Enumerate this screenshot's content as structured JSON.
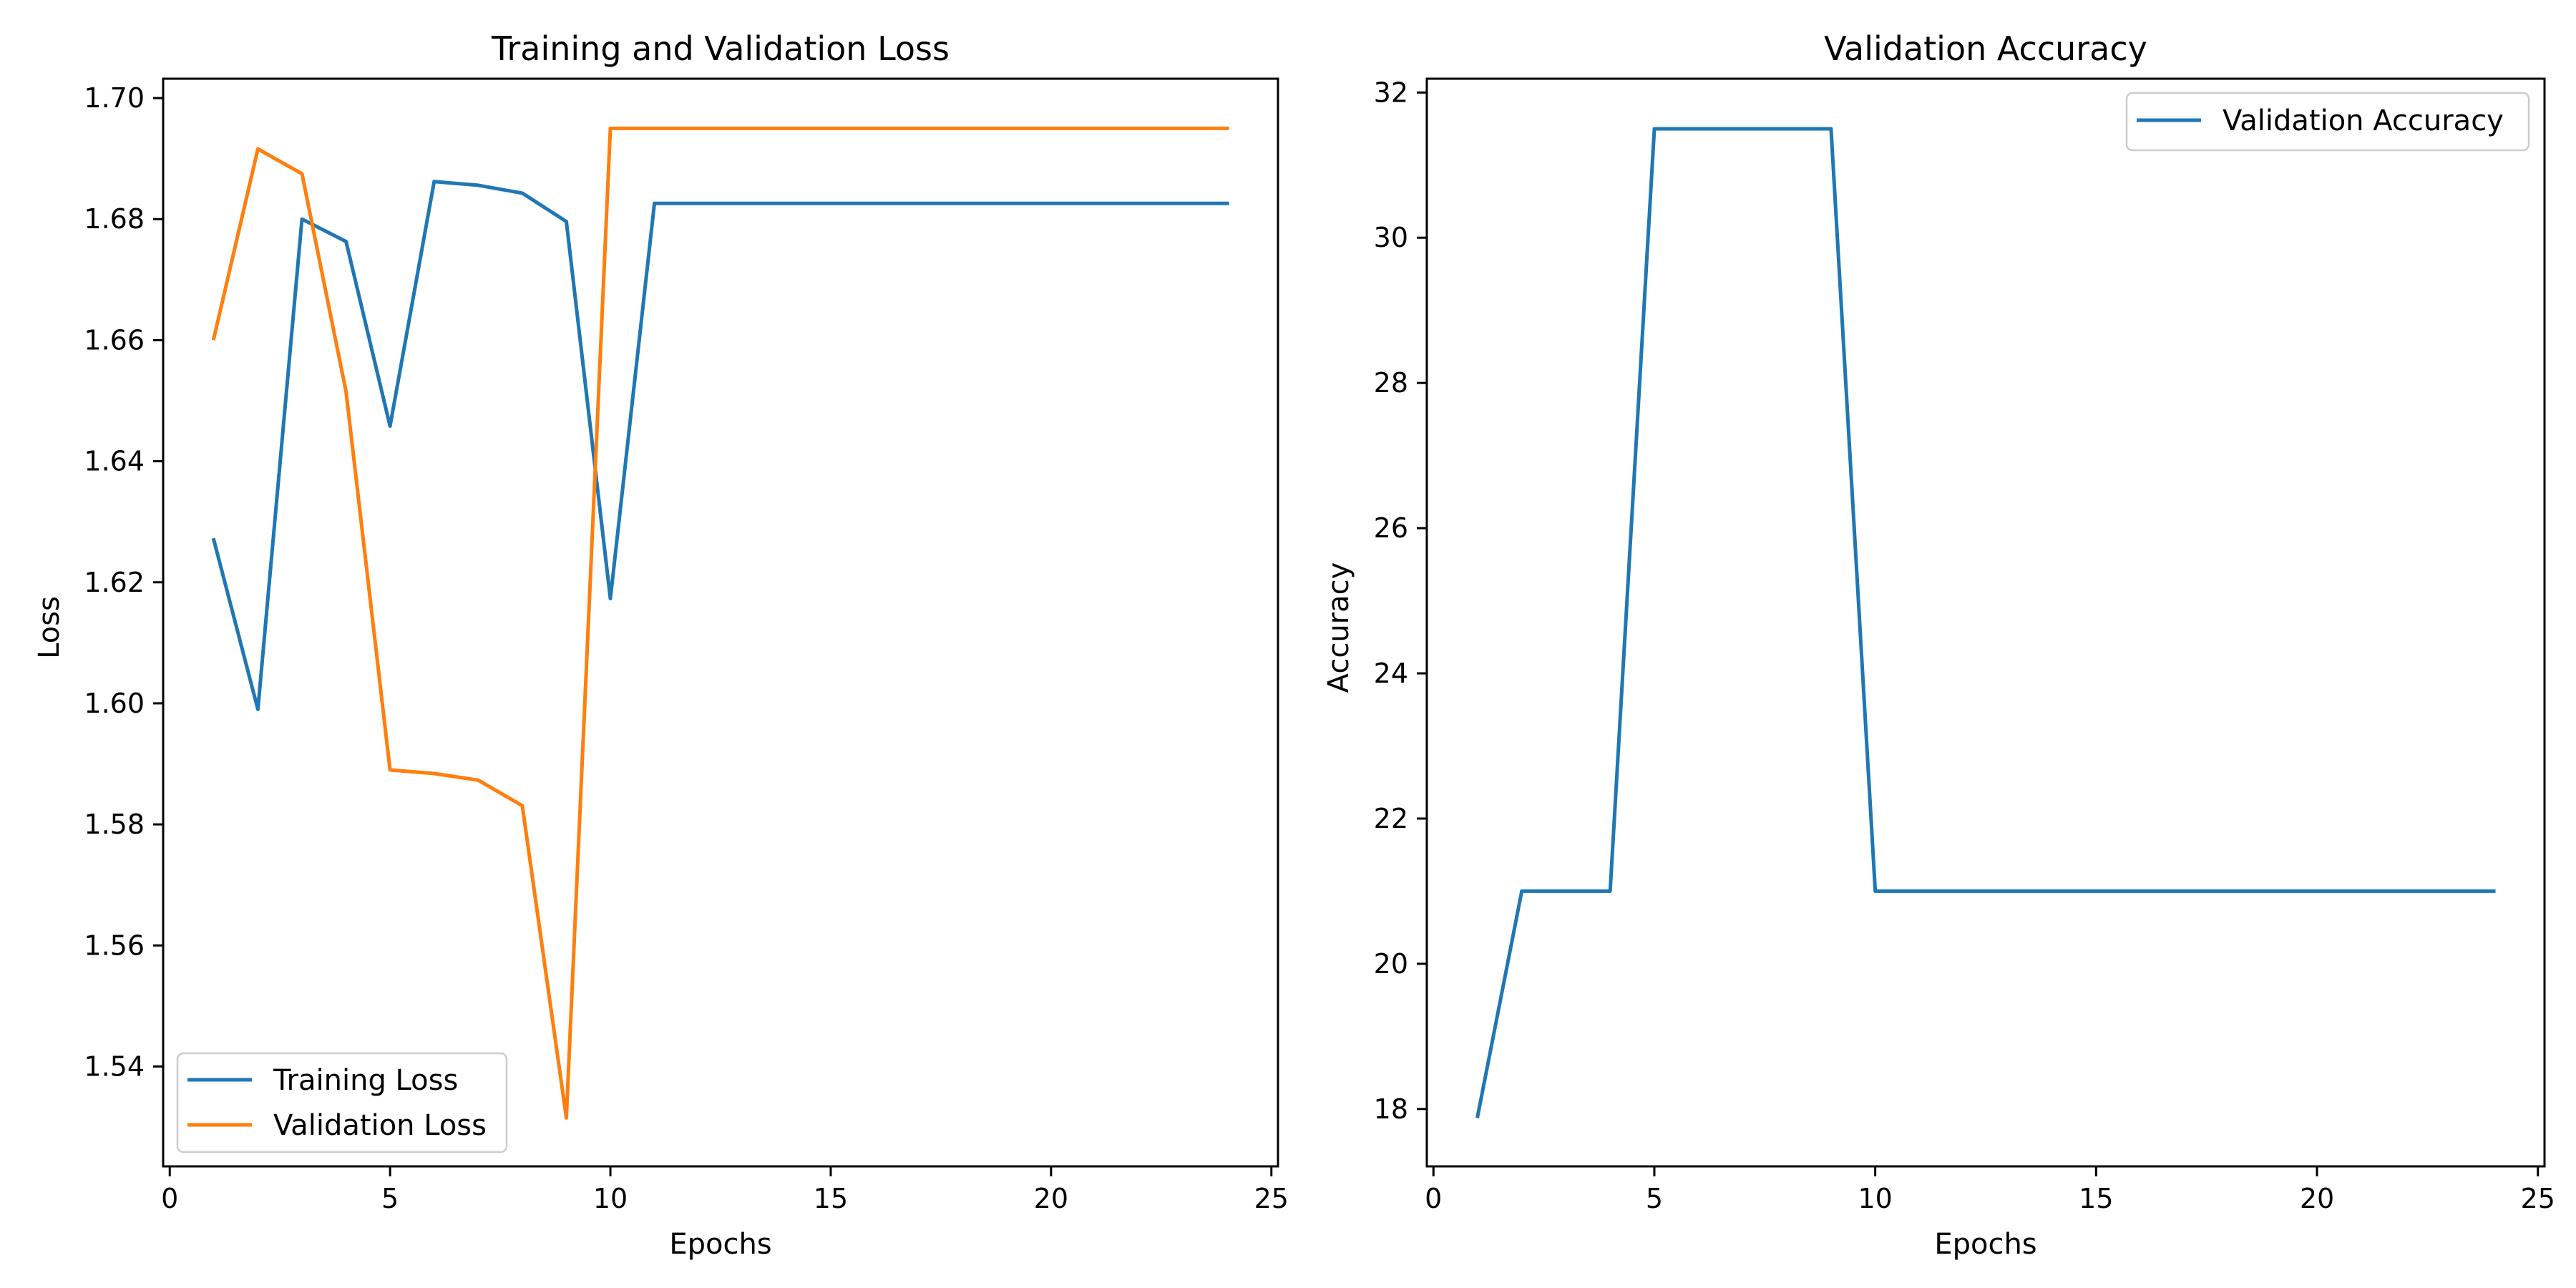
{
  "chart_data": [
    {
      "type": "line",
      "title": "Training and Validation Loss",
      "xlabel": "Epochs",
      "ylabel": "Loss",
      "xlim": [
        -0.15,
        25.15
      ],
      "ylim": [
        1.5235,
        1.7032
      ],
      "xticks": [
        0,
        5,
        10,
        15,
        20,
        25
      ],
      "xtick_labels": [
        "0",
        "5",
        "10",
        "15",
        "20",
        "25"
      ],
      "yticks": [
        1.54,
        1.56,
        1.58,
        1.6,
        1.62,
        1.64,
        1.66,
        1.68,
        1.7
      ],
      "ytick_labels": [
        "1.54",
        "1.56",
        "1.58",
        "1.60",
        "1.62",
        "1.64",
        "1.66",
        "1.68",
        "1.70"
      ],
      "grid": false,
      "legend_position": "lower-left",
      "x": [
        1,
        2,
        3,
        4,
        5,
        6,
        7,
        8,
        9,
        10,
        11,
        12,
        13,
        14,
        15,
        16,
        17,
        18,
        19,
        20,
        21,
        22,
        23,
        24
      ],
      "series": [
        {
          "name": "Training Loss",
          "color": "#1f77b4",
          "values": [
            1.627,
            1.599,
            1.68,
            1.6763,
            1.6458,
            1.6862,
            1.6856,
            1.6843,
            1.6796,
            1.6173,
            1.6826,
            1.6826,
            1.6826,
            1.6826,
            1.6826,
            1.6826,
            1.6826,
            1.6826,
            1.6826,
            1.6826,
            1.6826,
            1.6826,
            1.6826,
            1.6826
          ]
        },
        {
          "name": "Validation Loss",
          "color": "#ff7f0e",
          "values": [
            1.6603,
            1.6916,
            1.6875,
            1.6515,
            1.589,
            1.5884,
            1.5873,
            1.5831,
            1.5315,
            1.695,
            1.695,
            1.695,
            1.695,
            1.695,
            1.695,
            1.695,
            1.695,
            1.695,
            1.695,
            1.695,
            1.695,
            1.695,
            1.695,
            1.695
          ]
        }
      ]
    },
    {
      "type": "line",
      "title": "Validation Accuracy",
      "xlabel": "Epochs",
      "ylabel": "Accuracy",
      "xlim": [
        -0.15,
        25.15
      ],
      "ylim": [
        17.21,
        32.19
      ],
      "xticks": [
        0,
        5,
        10,
        15,
        20,
        25
      ],
      "xtick_labels": [
        "0",
        "5",
        "10",
        "15",
        "20",
        "25"
      ],
      "yticks": [
        18,
        20,
        22,
        24,
        26,
        28,
        30,
        32
      ],
      "ytick_labels": [
        "18",
        "20",
        "22",
        "24",
        "26",
        "28",
        "30",
        "32"
      ],
      "grid": false,
      "legend_position": "top-right",
      "x": [
        1,
        2,
        3,
        4,
        5,
        6,
        7,
        8,
        9,
        10,
        11,
        12,
        13,
        14,
        15,
        16,
        17,
        18,
        19,
        20,
        21,
        22,
        23,
        24
      ],
      "series": [
        {
          "name": "Validation Accuracy",
          "color": "#1f77b4",
          "values": [
            17.9,
            21.0,
            21.0,
            21.0,
            31.5,
            31.5,
            31.5,
            31.5,
            31.5,
            21.0,
            21.0,
            21.0,
            21.0,
            21.0,
            21.0,
            21.0,
            21.0,
            21.0,
            21.0,
            21.0,
            21.0,
            21.0,
            21.0,
            21.0
          ]
        }
      ]
    }
  ]
}
